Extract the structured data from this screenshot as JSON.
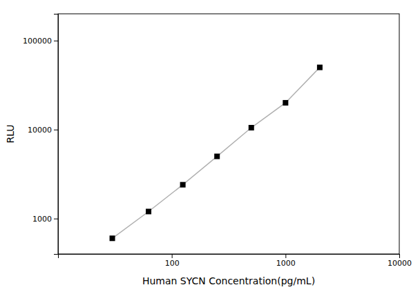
{
  "chart_data": {
    "type": "line",
    "x": [
      30,
      62.5,
      125,
      250,
      500,
      1000,
      2000
    ],
    "series": [
      {
        "type": "line",
        "color": "#b0b0b0",
        "values": [
          600,
          1200,
          2400,
          5000,
          10500,
          20000,
          50000
        ]
      },
      {
        "type": "scatter",
        "color": "black",
        "marker": "square",
        "values": [
          600,
          1200,
          2400,
          5000,
          10500,
          20000,
          50000
        ]
      }
    ],
    "xlabel": "Human SYCN Concentration(pg/mL)",
    "ylabel": "RLU",
    "xlim": [
      10,
      10000
    ],
    "ylim": [
      400,
      200000
    ],
    "xticks": [
      100,
      1000,
      10000
    ],
    "yticks": [
      1000,
      10000,
      100000
    ],
    "log": true,
    "grid": false
  }
}
